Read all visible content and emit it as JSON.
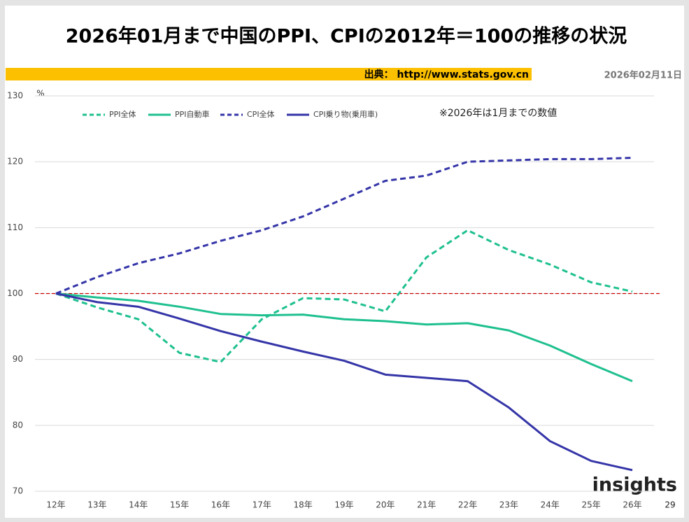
{
  "chart_data": {
    "type": "line",
    "title": "2026年01月まで中国のPPI、CPIの2012年＝100の推移の状況",
    "source": "出典： http://www.stats.gov.cn",
    "date": "2026年02月11日",
    "y_unit": "%",
    "note": "※2026年は1月までの数値",
    "brand": "insights",
    "page_number": "29",
    "categories": [
      "12年",
      "13年",
      "14年",
      "15年",
      "16年",
      "17年",
      "18年",
      "19年",
      "20年",
      "21年",
      "22年",
      "23年",
      "24年",
      "25年",
      "26年"
    ],
    "series": [
      {
        "name": "PPI全体",
        "color": "#1fc08f",
        "dashed": true,
        "values": [
          100,
          97.9,
          96.1,
          91.0,
          89.6,
          96.1,
          99.3,
          99.1,
          97.3,
          105.5,
          109.6,
          106.6,
          104.4,
          101.7,
          100.3
        ]
      },
      {
        "name": "PPI自動車",
        "color": "#1fc08f",
        "dashed": false,
        "values": [
          100,
          99.4,
          98.9,
          98.0,
          96.9,
          96.7,
          96.8,
          96.1,
          95.8,
          95.3,
          95.5,
          94.4,
          92.1,
          89.3,
          86.7
        ]
      },
      {
        "name": "CPI全体",
        "color": "#3535a8",
        "dashed": true,
        "values": [
          100,
          102.5,
          104.6,
          106.1,
          108.0,
          109.6,
          111.7,
          114.4,
          117.1,
          117.9,
          120.0,
          120.2,
          120.4,
          120.4,
          120.6
        ]
      },
      {
        "name": "CPI乗り物(乗用車)",
        "color": "#3535a8",
        "dashed": false,
        "values": [
          100,
          98.7,
          98.0,
          96.2,
          94.3,
          92.7,
          91.2,
          89.8,
          87.7,
          87.2,
          86.7,
          82.7,
          77.6,
          74.6,
          73.2
        ]
      }
    ],
    "reference_line": {
      "value": 100,
      "color": "#cc0000"
    },
    "ylim": [
      70,
      130
    ],
    "yticks": [
      70,
      80,
      90,
      100,
      110,
      120,
      130
    ],
    "grid": true
  }
}
